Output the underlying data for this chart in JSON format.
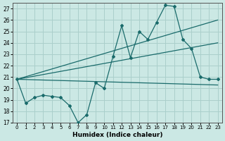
{
  "background_color": "#cbe8e4",
  "grid_color": "#aacfcb",
  "line_color": "#1a6b6b",
  "xlabel": "Humidex (Indice chaleur)",
  "xlim": [
    -0.5,
    23.5
  ],
  "ylim": [
    17,
    27.5
  ],
  "yticks": [
    17,
    18,
    19,
    20,
    21,
    22,
    23,
    24,
    25,
    26,
    27
  ],
  "xticks": [
    0,
    1,
    2,
    3,
    4,
    5,
    6,
    7,
    8,
    9,
    10,
    11,
    12,
    13,
    14,
    15,
    16,
    17,
    18,
    19,
    20,
    21,
    22,
    23
  ],
  "main_x": [
    0,
    1,
    2,
    3,
    4,
    5,
    6,
    7,
    8,
    9,
    10,
    11,
    12,
    13,
    14,
    15,
    16,
    17,
    18,
    19,
    20,
    21,
    22,
    23
  ],
  "main_y": [
    20.8,
    18.7,
    19.2,
    19.4,
    19.3,
    19.2,
    18.5,
    17.0,
    17.7,
    20.5,
    20.0,
    22.8,
    25.5,
    22.7,
    25.0,
    24.3,
    25.8,
    27.3,
    27.2,
    24.3,
    23.5,
    21.0,
    20.8,
    20.8
  ],
  "line1_x": [
    0,
    23
  ],
  "line1_y": [
    20.8,
    20.3
  ],
  "line2_x": [
    0,
    23
  ],
  "line2_y": [
    20.8,
    24.0
  ],
  "line3_x": [
    0,
    23
  ],
  "line3_y": [
    20.8,
    26.0
  ]
}
